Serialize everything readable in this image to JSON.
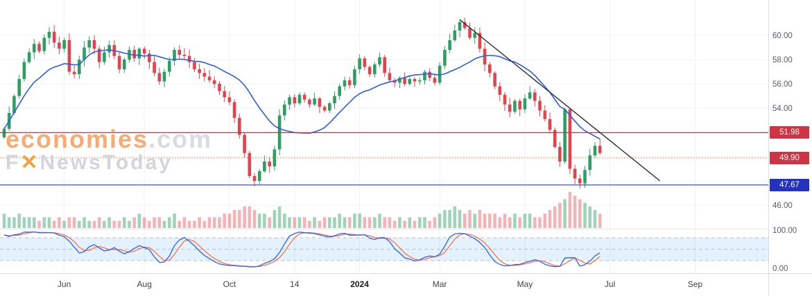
{
  "watermark": {
    "brand": "economies",
    "suffix": ".com",
    "line2_f": "F",
    "line2_x": "✕",
    "line2_rest": "NewsToday"
  },
  "chart_data": {
    "type": "candlestick",
    "x_axis": {
      "ticks": [
        {
          "label": "Jun",
          "index": 12
        },
        {
          "label": "Aug",
          "index": 28
        },
        {
          "label": "Oct",
          "index": 45
        },
        {
          "label": "14",
          "index": 58
        },
        {
          "label": "2024",
          "index": 71,
          "bold": true
        },
        {
          "label": "Mar",
          "index": 87
        },
        {
          "label": "May",
          "index": 104
        },
        {
          "label": "Jul",
          "index": 121
        },
        {
          "label": "Sep",
          "index": 138
        }
      ]
    },
    "y_axis": {
      "price_ticks": [
        {
          "label": "60.00",
          "price": 60.0
        },
        {
          "label": "58.00",
          "price": 58.0
        },
        {
          "label": "56.00",
          "price": 56.0
        },
        {
          "label": "54.00",
          "price": 54.0
        },
        {
          "label": "46.00",
          "price": 46.0
        }
      ],
      "grid_prices": [
        52.0,
        50.0,
        48.0
      ],
      "osc_ticks": [
        {
          "label": "100.00",
          "value": 100
        },
        {
          "label": "0.00",
          "value": 0
        }
      ]
    },
    "open_first": 51.6,
    "closes": [
      52.3,
      53.6,
      55.0,
      56.4,
      57.8,
      58.6,
      59.3,
      58.7,
      59.8,
      60.3,
      59.4,
      58.9,
      59.6,
      57.0,
      56.8,
      58.0,
      59.0,
      59.6,
      58.9,
      57.8,
      58.6,
      59.2,
      58.3,
      57.2,
      58.0,
      58.8,
      58.1,
      58.9,
      58.5,
      57.8,
      56.9,
      56.2,
      57.0,
      57.9,
      58.8,
      58.4,
      58.3,
      57.8,
      57.2,
      56.9,
      56.6,
      56.3,
      56.0,
      55.4,
      54.9,
      54.5,
      53.2,
      51.8,
      50.3,
      48.4,
      48.0,
      48.8,
      49.6,
      49.2,
      50.6,
      53.4,
      54.3,
      54.9,
      54.4,
      55.1,
      54.7,
      54.3,
      54.8,
      54.1,
      53.8,
      54.4,
      55.0,
      55.8,
      56.3,
      55.9,
      57.2,
      58.1,
      57.4,
      56.8,
      57.6,
      58.2,
      56.9,
      56.3,
      56.1,
      56.5,
      56.0,
      56.4,
      56.2,
      56.3,
      57.0,
      56.5,
      56.1,
      57.5,
      58.8,
      59.6,
      60.4,
      61.1,
      60.6,
      59.8,
      60.2,
      58.9,
      57.6,
      56.9,
      55.8,
      55.1,
      54.3,
      53.7,
      54.6,
      53.9,
      54.8,
      55.3,
      54.6,
      53.8,
      53.1,
      52.2,
      50.8,
      49.6,
      53.9,
      49.0,
      48.2,
      47.8,
      48.9,
      50.1,
      50.9,
      50.3
    ],
    "volumes": [
      4,
      3,
      3,
      4,
      3,
      3,
      3,
      2,
      3,
      3,
      2,
      3,
      2,
      3,
      3,
      2,
      3,
      2,
      2,
      3,
      2,
      3,
      2,
      2,
      3,
      2,
      3,
      4,
      3,
      2,
      3,
      3,
      2,
      3,
      4,
      2,
      3,
      2,
      2,
      3,
      2,
      3,
      3,
      3,
      4,
      4,
      5,
      5,
      6,
      6,
      5,
      4,
      4,
      3,
      5,
      6,
      4,
      3,
      3,
      3,
      3,
      2,
      3,
      2,
      3,
      3,
      3,
      4,
      3,
      3,
      4,
      4,
      3,
      3,
      3,
      4,
      3,
      3,
      2,
      3,
      2,
      3,
      2,
      3,
      3,
      2,
      3,
      4,
      5,
      5,
      6,
      5,
      4,
      5,
      4,
      5,
      4,
      4,
      4,
      3,
      4,
      3,
      4,
      3,
      4,
      4,
      3,
      3,
      4,
      5,
      6,
      7,
      8,
      10,
      9,
      8,
      7,
      6,
      5,
      4
    ],
    "price_lines": [
      {
        "label": "51.98",
        "price": 51.98,
        "color": "#a6404a",
        "style": "solid",
        "badge": "#cc3644"
      },
      {
        "label": "49.90",
        "price": 49.9,
        "color": "#e0862e",
        "style": "dotted",
        "badge": "#cc3644"
      },
      {
        "label": "47.67",
        "price": 47.67,
        "color": "#2a3cc4",
        "style": "solid",
        "badge": "#2333c0"
      }
    ],
    "trendline": {
      "from": {
        "index": 91,
        "price": 61.3
      },
      "to": {
        "index": 131,
        "price": 48.0
      },
      "color": "#2a2e39"
    },
    "ma": {
      "period": 16,
      "color": "#2d5be3"
    },
    "oscillator": {
      "type": "stochastic",
      "k_period": 12,
      "k_smooth": 3,
      "d_period": 3,
      "k_color": "#2962ff",
      "d_color": "#ff7043",
      "bands": [
        80,
        50,
        20
      ],
      "fill": [
        20,
        80
      ],
      "fill_color": "rgba(33,150,243,0.12)"
    },
    "colors": {
      "up": "#2e9e63",
      "down": "#e2444e",
      "grid": "#eef1f5",
      "axis_text": "#565b66",
      "volume_up": "rgba(46,158,99,0.45)",
      "volume_down": "rgba(226,68,78,0.40)"
    }
  }
}
